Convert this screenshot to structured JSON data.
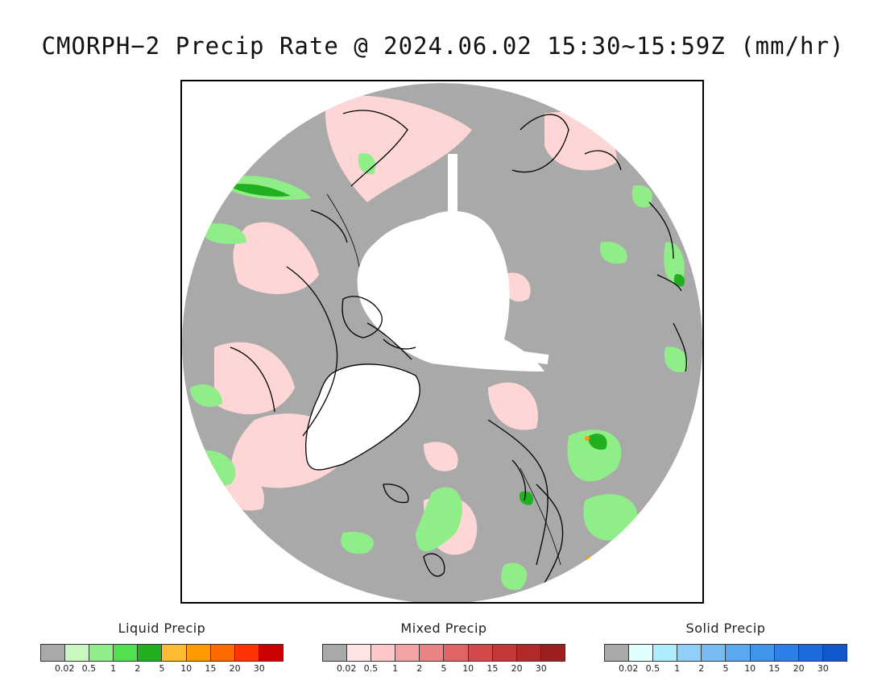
{
  "title": "CMORPH−2 Precip Rate @ 2024.06.02 15:30~15:59Z (mm/hr)",
  "map": {
    "background_gray": "#a9a9a9",
    "no_data_white": "#ffffff",
    "coast_color": "#000000"
  },
  "legends": [
    {
      "title": "Liquid Precip",
      "colors": [
        "#a9a9a9",
        "#c8f7c0",
        "#90ee88",
        "#50e050",
        "#20b020",
        "#ffbb33",
        "#ff9a00",
        "#ff6a00",
        "#ff3300",
        "#cc0000"
      ],
      "ticks": [
        "0.02",
        "0.5",
        "1",
        "2",
        "5",
        "10",
        "15",
        "20",
        "30"
      ]
    },
    {
      "title": "Mixed Precip",
      "colors": [
        "#a9a9a9",
        "#ffe4e4",
        "#ffc8c8",
        "#f4a4a4",
        "#ea8484",
        "#e06464",
        "#d44a4a",
        "#c43838",
        "#b02a2a",
        "#9c2020"
      ],
      "ticks": [
        "0.02",
        "0.5",
        "1",
        "2",
        "5",
        "10",
        "15",
        "20",
        "30"
      ]
    },
    {
      "title": "Solid Precip",
      "colors": [
        "#a9a9a9",
        "#e0ffff",
        "#b0ecff",
        "#90d0f8",
        "#78bcf4",
        "#5aa8f0",
        "#4094ec",
        "#2c80e8",
        "#1c6ce0",
        "#1058cc"
      ],
      "ticks": [
        "0.02",
        "0.5",
        "1",
        "2",
        "5",
        "10",
        "15",
        "20",
        "30"
      ]
    }
  ]
}
